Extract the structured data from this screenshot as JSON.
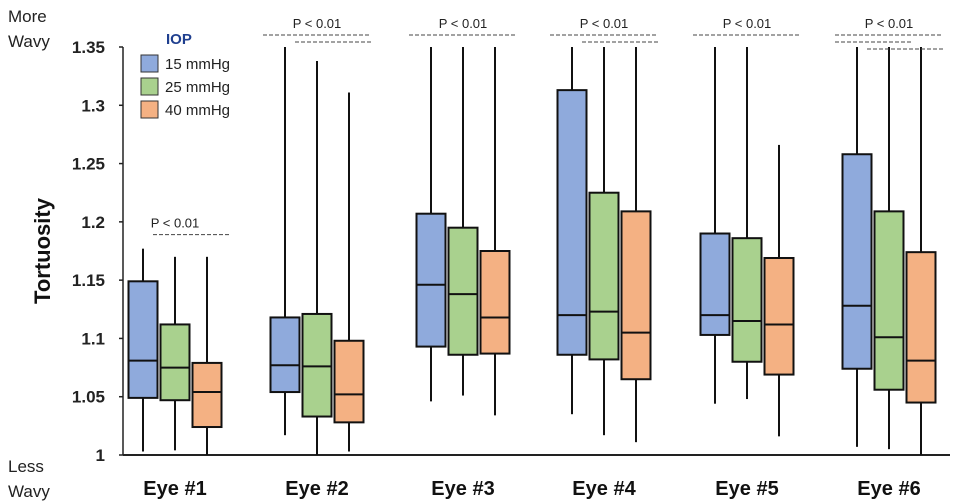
{
  "chart_data": {
    "type": "boxplot",
    "ylabel": "Tortuosity",
    "y_top_note": [
      "More",
      "Wavy"
    ],
    "y_bottom_note": [
      "Less",
      "Wavy"
    ],
    "ylim": [
      1,
      1.35
    ],
    "yticks": [
      "1",
      "1.05",
      "1.1",
      "1.15",
      "1.2",
      "1.25",
      "1.3",
      "1.35"
    ],
    "ytick_values": [
      1,
      1.05,
      1.1,
      1.15,
      1.2,
      1.25,
      1.3,
      1.35
    ],
    "categories": [
      "Eye #1",
      "Eye #2",
      "Eye #3",
      "Eye #4",
      "Eye #5",
      "Eye #6"
    ],
    "legend": {
      "title": "IOP",
      "position": "top-left",
      "items": [
        {
          "label": "15 mmHg",
          "color": "#8faadc"
        },
        {
          "label": "25 mmHg",
          "color": "#a9d18e"
        },
        {
          "label": "40 mmHg",
          "color": "#f4b183"
        }
      ]
    },
    "significance_label": "P < 0.01",
    "significance": [
      {
        "category": 0,
        "pairs": [
          [
            1,
            2
          ]
        ]
      },
      {
        "category": 1,
        "pairs": [
          [
            0,
            2
          ],
          [
            1,
            2
          ]
        ]
      },
      {
        "category": 2,
        "pairs": [
          [
            0,
            2
          ]
        ]
      },
      {
        "category": 3,
        "pairs": [
          [
            0,
            2
          ],
          [
            1,
            2
          ]
        ]
      },
      {
        "category": 4,
        "pairs": [
          [
            0,
            2
          ]
        ]
      },
      {
        "category": 5,
        "pairs": [
          [
            0,
            2
          ],
          [
            0,
            1
          ],
          [
            1,
            2
          ]
        ]
      }
    ],
    "series": [
      {
        "name": "15 mmHg",
        "boxes": [
          {
            "min": 1.003,
            "q1": 1.049,
            "median": 1.081,
            "q3": 1.149,
            "max": 1.177
          },
          {
            "min": 1.017,
            "q1": 1.054,
            "median": 1.077,
            "q3": 1.118,
            "max": 1.35
          },
          {
            "min": 1.046,
            "q1": 1.093,
            "median": 1.146,
            "q3": 1.207,
            "max": 1.35
          },
          {
            "min": 1.035,
            "q1": 1.086,
            "median": 1.12,
            "q3": 1.313,
            "max": 1.35
          },
          {
            "min": 1.044,
            "q1": 1.103,
            "median": 1.12,
            "q3": 1.19,
            "max": 1.35
          },
          {
            "min": 1.007,
            "q1": 1.074,
            "median": 1.128,
            "q3": 1.258,
            "max": 1.35
          }
        ]
      },
      {
        "name": "25 mmHg",
        "boxes": [
          {
            "min": 1.004,
            "q1": 1.047,
            "median": 1.075,
            "q3": 1.112,
            "max": 1.17
          },
          {
            "min": 1.0,
            "q1": 1.033,
            "median": 1.076,
            "q3": 1.121,
            "max": 1.338
          },
          {
            "min": 1.051,
            "q1": 1.086,
            "median": 1.138,
            "q3": 1.195,
            "max": 1.35
          },
          {
            "min": 1.017,
            "q1": 1.082,
            "median": 1.123,
            "q3": 1.225,
            "max": 1.35
          },
          {
            "min": 1.048,
            "q1": 1.08,
            "median": 1.115,
            "q3": 1.186,
            "max": 1.35
          },
          {
            "min": 1.005,
            "q1": 1.056,
            "median": 1.101,
            "q3": 1.209,
            "max": 1.35
          }
        ]
      },
      {
        "name": "40 mmHg",
        "boxes": [
          {
            "min": 1.0,
            "q1": 1.024,
            "median": 1.054,
            "q3": 1.079,
            "max": 1.17
          },
          {
            "min": 1.003,
            "q1": 1.028,
            "median": 1.052,
            "q3": 1.098,
            "max": 1.311
          },
          {
            "min": 1.034,
            "q1": 1.087,
            "median": 1.118,
            "q3": 1.175,
            "max": 1.35
          },
          {
            "min": 1.011,
            "q1": 1.065,
            "median": 1.105,
            "q3": 1.209,
            "max": 1.35
          },
          {
            "min": 1.016,
            "q1": 1.069,
            "median": 1.112,
            "q3": 1.169,
            "max": 1.266
          },
          {
            "min": 1.0,
            "q1": 1.045,
            "median": 1.081,
            "q3": 1.174,
            "max": 1.35
          }
        ]
      }
    ]
  }
}
